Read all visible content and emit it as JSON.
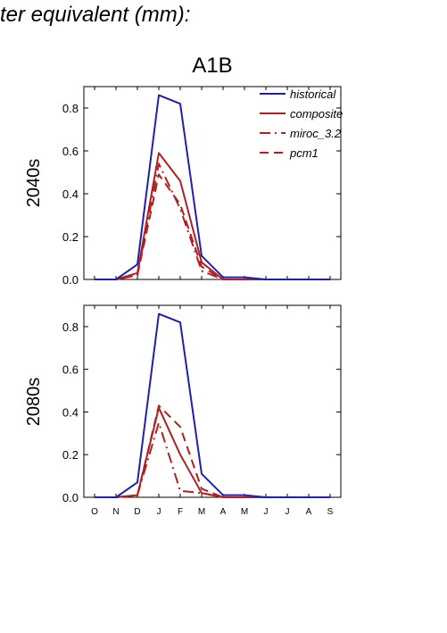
{
  "header": {
    "text": "ter equivalent (mm):"
  },
  "chart_data": {
    "type": "line",
    "title": "A1B",
    "categories": [
      "O",
      "N",
      "D",
      "J",
      "F",
      "M",
      "A",
      "M",
      "J",
      "J",
      "A",
      "S"
    ],
    "ylim": [
      0,
      0.9
    ],
    "yticks": [
      "0.0",
      "0.2",
      "0.4",
      "0.6",
      "0.8"
    ],
    "legend": {
      "placement": "top-right"
    },
    "series_styles": {
      "historical": {
        "color": "#2020b0",
        "dash": "solid"
      },
      "composite": {
        "color": "#b02020",
        "dash": "solid"
      },
      "miroc_3.2": {
        "color": "#b02020",
        "dash": "dashdot"
      },
      "pcm1": {
        "color": "#b02020",
        "dash": "dashed"
      }
    },
    "panels": [
      {
        "label": "2040s",
        "series": [
          {
            "name": "historical",
            "values": [
              0,
              0,
              0.07,
              0.86,
              0.82,
              0.11,
              0.01,
              0.01,
              0,
              0,
              0,
              0
            ]
          },
          {
            "name": "composite",
            "values": [
              0,
              0,
              0.03,
              0.59,
              0.46,
              0.08,
              0,
              0,
              0,
              0,
              0,
              0
            ]
          },
          {
            "name": "miroc_3.2",
            "values": [
              0,
              0,
              0.02,
              0.54,
              0.33,
              0.04,
              0,
              0,
              0,
              0,
              0,
              0
            ]
          },
          {
            "name": "pcm1",
            "values": [
              0,
              0,
              0.02,
              0.49,
              0.35,
              0.06,
              0,
              0,
              0,
              0,
              0,
              0
            ]
          }
        ]
      },
      {
        "label": "2080s",
        "series": [
          {
            "name": "historical",
            "values": [
              0,
              0,
              0.07,
              0.86,
              0.82,
              0.11,
              0.01,
              0.01,
              0,
              0,
              0,
              0
            ]
          },
          {
            "name": "composite",
            "values": [
              0,
              0,
              0.01,
              0.42,
              0.2,
              0.02,
              0,
              0,
              0,
              0,
              0,
              0
            ]
          },
          {
            "name": "miroc_3.2",
            "values": [
              0,
              0,
              0.01,
              0.35,
              0.03,
              0.02,
              0,
              0,
              0,
              0,
              0,
              0
            ]
          },
          {
            "name": "pcm1",
            "values": [
              0,
              0,
              0.01,
              0.43,
              0.33,
              0.04,
              0,
              0,
              0,
              0,
              0,
              0
            ]
          }
        ]
      }
    ]
  }
}
